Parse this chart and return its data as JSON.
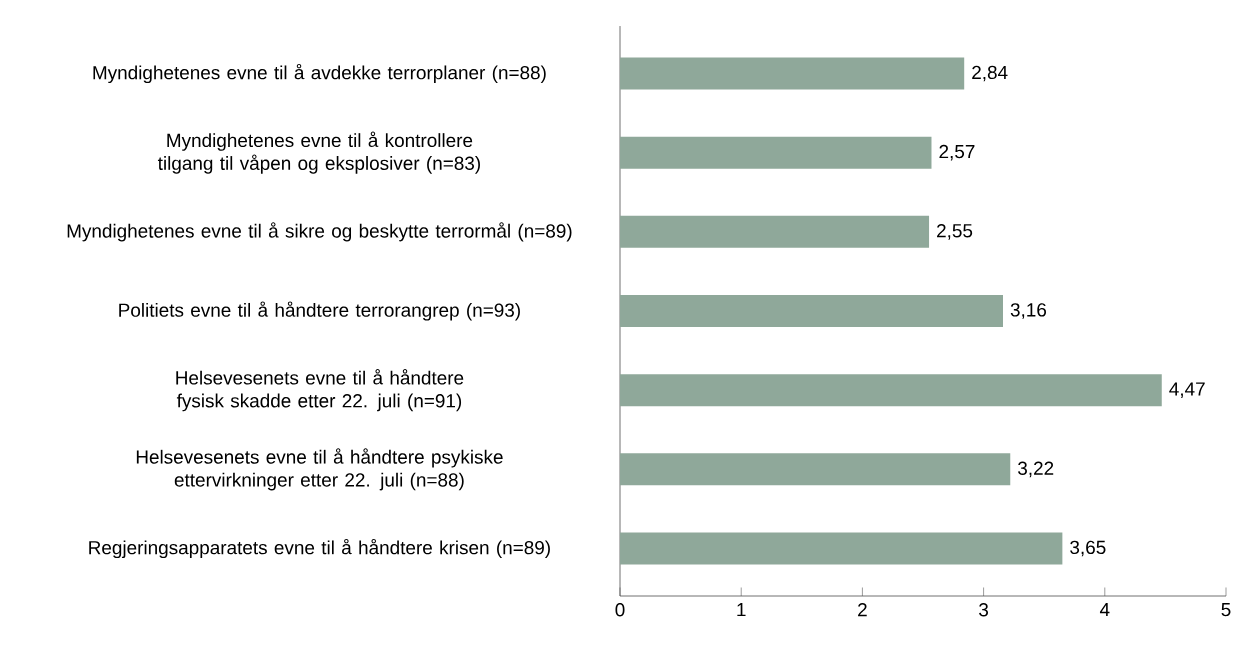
{
  "chart_data": {
    "type": "bar",
    "orientation": "horizontal",
    "categories": [
      "Myndighetenes evne til å avdekke terrorplaner (n=88)",
      "Myndighetenes evne til å kontrollere tilgang til våpen og eksplosiver (n=83)",
      "Myndighetenes evne til å sikre og beskytte terrormål (n=89)",
      "Politiets evne til å håndtere terrorangrep (n=93)",
      "Helsevesenets evne til å håndtere fysisk skadde etter 22. juli (n=91)",
      "Helsevesenets evne til å håndtere psykiske ettervirkninger etter 22. juli (n=88)",
      "Regjeringsapparatets evne til å håndtere krisen (n=89)"
    ],
    "values": [
      2.84,
      2.57,
      2.55,
      3.16,
      4.47,
      3.22,
      3.65
    ],
    "value_labels": [
      "2,84",
      "2,57",
      "2,55",
      "3,16",
      "4,47",
      "3,22",
      "3,65"
    ],
    "color": "#8fa89a",
    "xlim": [
      0,
      5
    ],
    "xticks": [
      0,
      1,
      2,
      3,
      4,
      5
    ]
  }
}
